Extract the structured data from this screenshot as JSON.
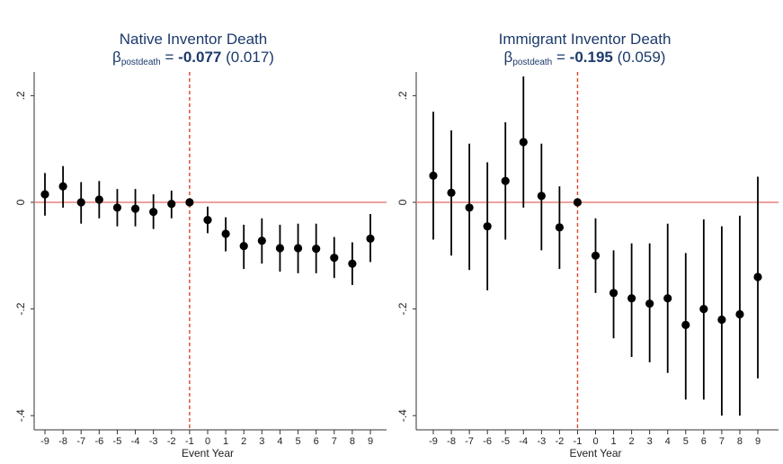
{
  "chart_data": [
    {
      "type": "scatter",
      "title": "Native Inventor Death",
      "subtitle": {
        "beta_symbol": "β",
        "beta_subscript": "postdeath",
        "equals": "=",
        "estimate": "-0.077",
        "se": "(0.017)"
      },
      "xlabel": "Event Year",
      "ylabel": "",
      "x_ticks": [
        -9,
        -8,
        -7,
        -6,
        -5,
        -4,
        -3,
        -2,
        -1,
        0,
        1,
        2,
        3,
        4,
        5,
        6,
        7,
        8,
        9
      ],
      "x_tick_labels": [
        "-9",
        "-8",
        "-7",
        "-6",
        "-5",
        "-4",
        "-3",
        "-2",
        "-1",
        "0",
        "1",
        "2",
        "3",
        "4",
        "5",
        "6",
        "7",
        "8",
        "9"
      ],
      "y_ticks": [
        0.2,
        0,
        -0.2,
        -0.4
      ],
      "y_tick_labels": [
        ".2",
        "0",
        "-.2",
        "-.4"
      ],
      "ylim": [
        -0.42,
        0.22
      ],
      "reference_lines": {
        "horizontal": 0,
        "vertical": -1
      },
      "series": [
        {
          "x": [
            -9,
            -8,
            -7,
            -6,
            -5,
            -4,
            -3,
            -2,
            -1,
            0,
            1,
            2,
            3,
            4,
            5,
            6,
            7,
            8,
            9
          ],
          "y": [
            0.015,
            0.03,
            0.0,
            0.005,
            -0.01,
            -0.012,
            -0.018,
            -0.003,
            0.0,
            -0.033,
            -0.059,
            -0.082,
            -0.072,
            -0.086,
            -0.086,
            -0.087,
            -0.104,
            -0.115,
            -0.068
          ],
          "ci_low": [
            -0.025,
            -0.01,
            -0.04,
            -0.03,
            -0.045,
            -0.045,
            -0.05,
            -0.03,
            0.0,
            -0.058,
            -0.092,
            -0.125,
            -0.115,
            -0.13,
            -0.133,
            -0.133,
            -0.142,
            -0.155,
            -0.112
          ],
          "ci_high": [
            0.055,
            0.068,
            0.038,
            0.04,
            0.025,
            0.025,
            0.015,
            0.022,
            0.0,
            -0.008,
            -0.028,
            -0.042,
            -0.03,
            -0.042,
            -0.04,
            -0.04,
            -0.065,
            -0.075,
            -0.022
          ]
        }
      ]
    },
    {
      "type": "scatter",
      "title": "Immigrant Inventor Death",
      "subtitle": {
        "beta_symbol": "β",
        "beta_subscript": "postdeath",
        "equals": "=",
        "estimate": "-0.195",
        "se": "(0.059)"
      },
      "xlabel": "Event Year",
      "ylabel": "",
      "x_ticks": [
        -9,
        -8,
        -7,
        -6,
        -5,
        -4,
        -3,
        -2,
        -1,
        0,
        1,
        2,
        3,
        4,
        5,
        6,
        7,
        8,
        9
      ],
      "x_tick_labels": [
        "-9",
        "-8",
        "-7",
        "-6",
        "-5",
        "-4",
        "-3",
        "-2",
        "-1",
        "0",
        "1",
        "2",
        "3",
        "4",
        "5",
        "6",
        "7",
        "8",
        "9"
      ],
      "y_ticks": [
        0.2,
        0,
        -0.2,
        -0.4
      ],
      "y_tick_labels": [
        ".2",
        "0",
        "-.2",
        "-.4"
      ],
      "ylim": [
        -0.42,
        0.22
      ],
      "reference_lines": {
        "horizontal": 0,
        "vertical": -1
      },
      "series": [
        {
          "x": [
            -9,
            -8,
            -7,
            -6,
            -5,
            -4,
            -3,
            -2,
            -1,
            0,
            1,
            2,
            3,
            4,
            5,
            6,
            7,
            8,
            9
          ],
          "y": [
            0.05,
            0.018,
            -0.01,
            -0.045,
            0.04,
            0.113,
            0.012,
            -0.047,
            0.0,
            -0.1,
            -0.17,
            -0.18,
            -0.19,
            -0.18,
            -0.23,
            -0.2,
            -0.22,
            -0.21,
            -0.14
          ],
          "ci_low": [
            -0.07,
            -0.1,
            -0.127,
            -0.165,
            -0.07,
            -0.01,
            -0.09,
            -0.125,
            0.0,
            -0.17,
            -0.255,
            -0.29,
            -0.3,
            -0.32,
            -0.37,
            -0.37,
            -0.4,
            -0.4,
            -0.33
          ],
          "ci_high": [
            0.17,
            0.135,
            0.11,
            0.075,
            0.15,
            0.236,
            0.11,
            0.03,
            0.0,
            -0.03,
            -0.09,
            -0.077,
            -0.077,
            -0.04,
            -0.095,
            -0.032,
            -0.045,
            -0.025,
            0.048
          ]
        }
      ]
    }
  ],
  "colors": {
    "title": "#1c3a6b",
    "zero_line": "#e8837d",
    "event_line": "#d9472b",
    "marker": "#000000",
    "axis": "#333333"
  }
}
